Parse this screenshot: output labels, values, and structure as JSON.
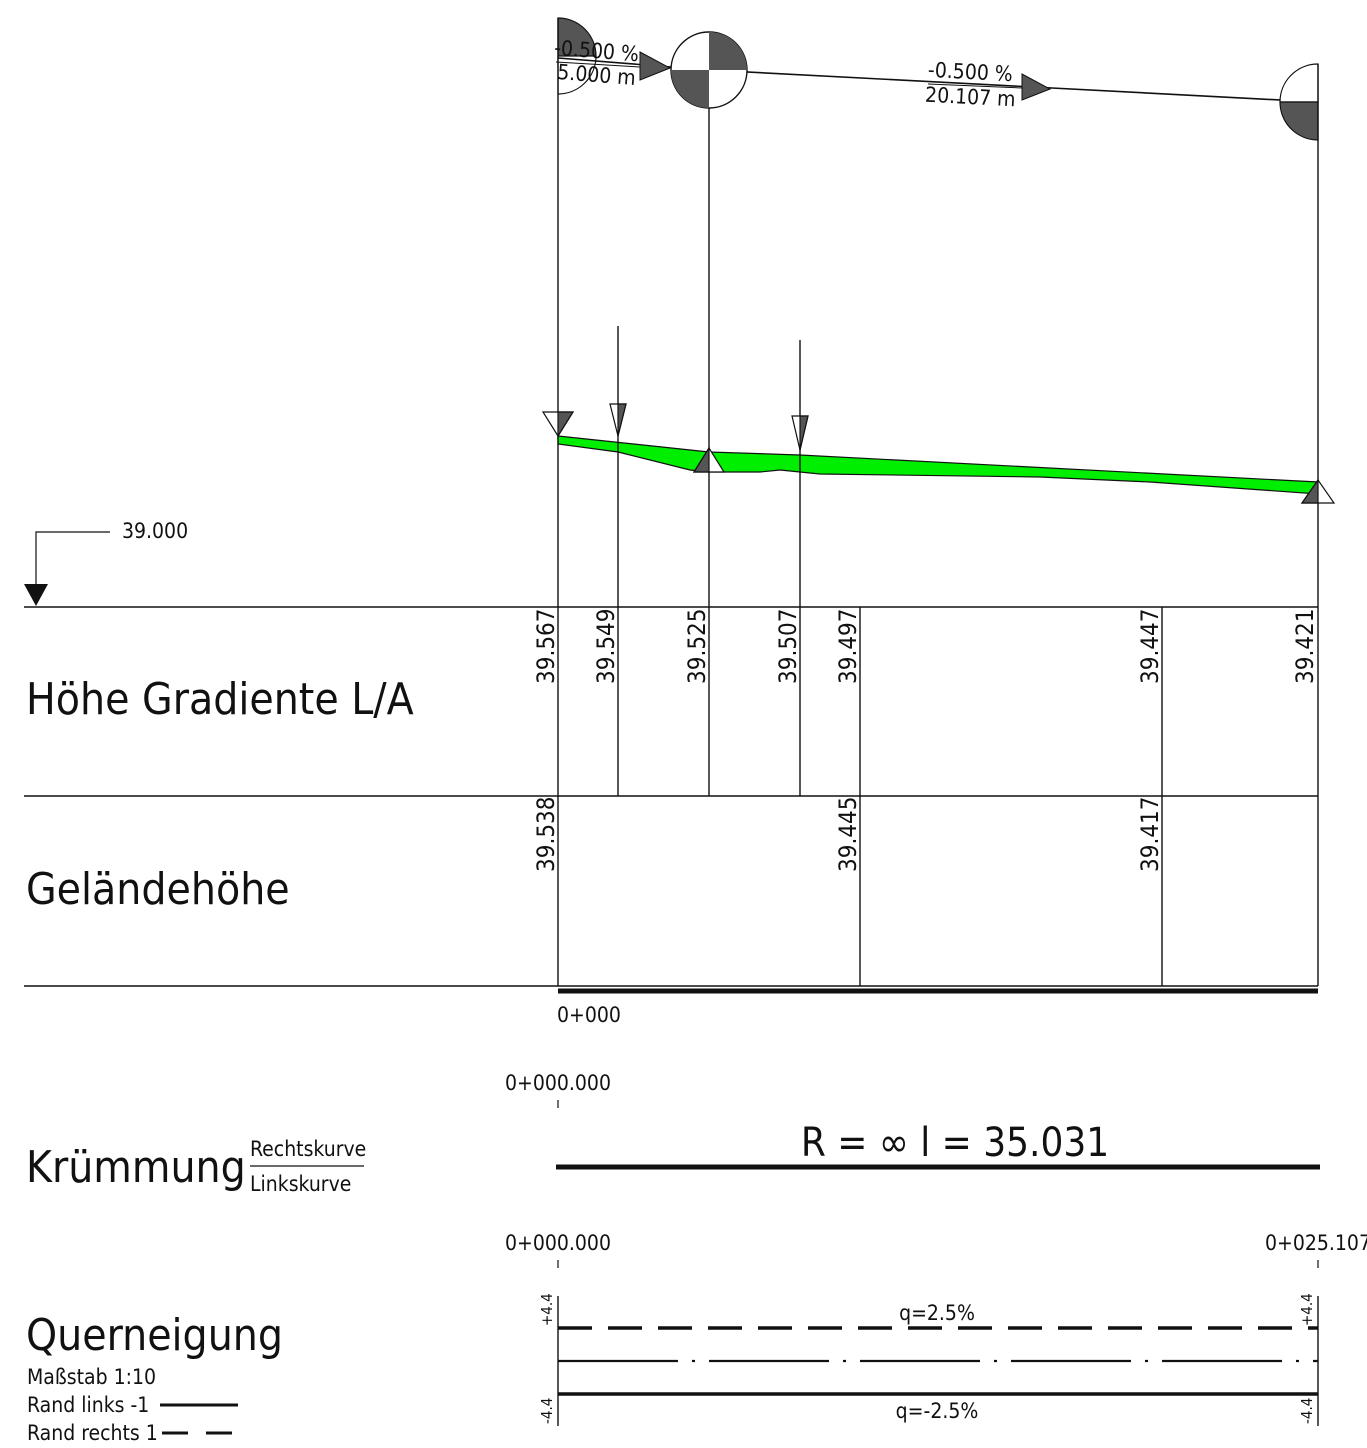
{
  "grade_lines": [
    {
      "grade": "-0.500 %",
      "length": "5.000 m"
    },
    {
      "grade": "-0.500 %",
      "length": "20.107 m"
    }
  ],
  "datum": {
    "value": "39.000"
  },
  "rows": {
    "gradient": {
      "label": "Höhe Gradiente L/A",
      "values": [
        "39.567",
        "39.549",
        "39.525",
        "39.507",
        "39.497",
        "39.447",
        "39.421"
      ]
    },
    "terrain": {
      "label": "Geländehöhe",
      "values": [
        "39.538",
        "39.445",
        "39.417"
      ]
    }
  },
  "station_start": "0+000",
  "curvature": {
    "label": "Krümmung",
    "legend_right": "Rechtskurve",
    "legend_left": "Linkskurve",
    "station_start": "0+000.000",
    "element_text": "R = ∞ l = 35.031"
  },
  "crossfall": {
    "label": "Querneigung",
    "scale": "Maßstab 1:10",
    "legend_left": "Rand links  -1",
    "legend_right": "Rand rechts  1",
    "station_start": "0+000.000",
    "station_end": "0+025.107",
    "q_left": "q=2.5%",
    "q_right": "q=-2.5%",
    "tick_top": "+4.4",
    "tick_bottom": "-4.4"
  }
}
